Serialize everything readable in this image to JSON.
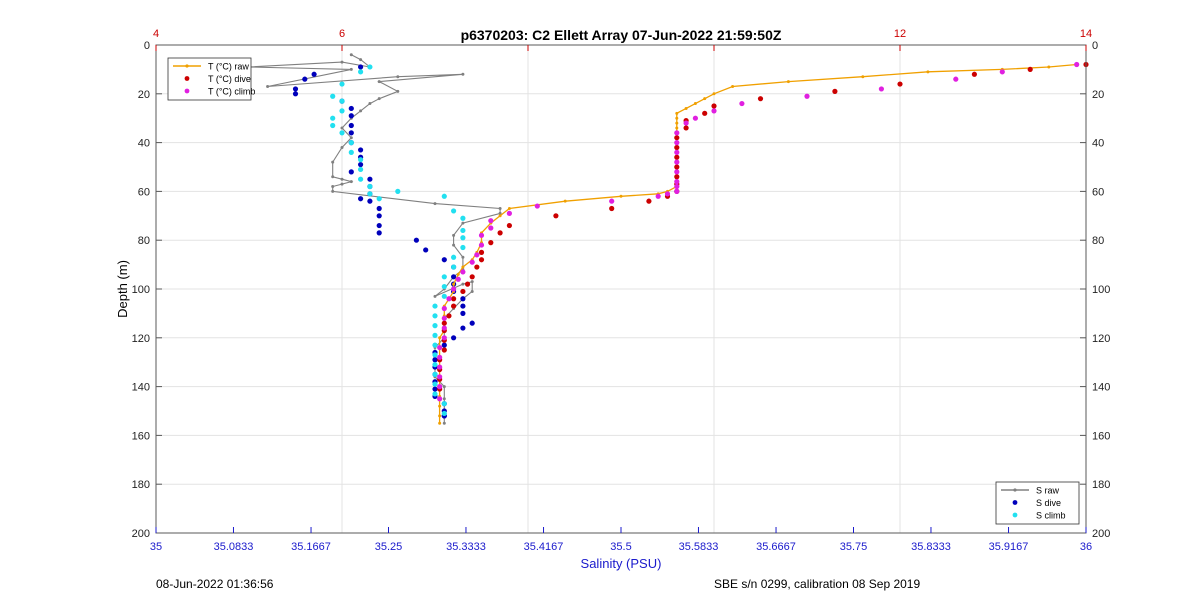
{
  "chart_data": {
    "type": "scatter",
    "title": "p6370203: C2 Ellett Array 07-Jun-2022 21:59:50Z",
    "xlabel": "Salinity (PSU)",
    "ylabel": "Depth (m)",
    "xlim": [
      35,
      36
    ],
    "x_ticks": [
      35,
      35.0833,
      35.1667,
      35.25,
      35.3333,
      35.4167,
      35.5,
      35.5833,
      35.6667,
      35.75,
      35.8333,
      35.9167,
      36
    ],
    "x_tick_labels": [
      "35",
      "35.0833",
      "35.1667",
      "35.25",
      "35.3333",
      "35.4167",
      "35.5",
      "35.5833",
      "35.6667",
      "35.75",
      "35.8333",
      "35.9167",
      "36"
    ],
    "x2lim": [
      4,
      14
    ],
    "x2_ticks": [
      4,
      6,
      8,
      10,
      12,
      14
    ],
    "x2_tick_labels": [
      "4",
      "6",
      "",
      "",
      "12",
      "14"
    ],
    "ylim": [
      0,
      200
    ],
    "y_ticks": [
      0,
      20,
      40,
      60,
      80,
      100,
      120,
      140,
      160,
      180,
      200
    ],
    "y_tick_labels": [
      "0",
      "20",
      "40",
      "60",
      "80",
      "100",
      "120",
      "140",
      "160",
      "180",
      "200"
    ],
    "grid": true,
    "legend_temperature": {
      "placement": "top-left",
      "entries": [
        "T (°C) raw",
        "T (°C) dive",
        "T (°C) climb"
      ]
    },
    "legend_salinity": {
      "placement": "bottom-right",
      "entries": [
        "S raw",
        "S dive",
        "S climb"
      ]
    },
    "colors": {
      "t_raw": "#f0a000",
      "t_dive": "#cc0000",
      "t_climb": "#e020e0",
      "s_raw": "#808080",
      "s_dive": "#0000bb",
      "s_climb": "#22e0f0",
      "top_axis": "#cc0000",
      "bottom_axis": "#1a1acc"
    },
    "series": [
      {
        "name": "S raw",
        "axis": "salinity",
        "style": "line-marker",
        "x": [
          35.21,
          35.22,
          35.23,
          35.2,
          35.1,
          35.21,
          35.12,
          35.26,
          35.33,
          35.24,
          35.26,
          35.24,
          35.23,
          35.22,
          35.21,
          35.2,
          35.21,
          35.2,
          35.19,
          35.19,
          35.2,
          35.21,
          35.2,
          35.19,
          35.19,
          35.3,
          35.37,
          35.37,
          35.33,
          35.32,
          35.32,
          35.33,
          35.33,
          35.32,
          35.31,
          35.3,
          35.33,
          35.34,
          35.34,
          35.33,
          35.32,
          35.31,
          35.31,
          35.31,
          35.3,
          35.3,
          35.3,
          35.3,
          35.31,
          35.31,
          35.31,
          35.31
        ],
        "y": [
          4,
          6,
          9,
          7,
          9,
          10,
          17,
          13,
          12,
          15,
          19,
          22,
          24,
          27,
          30,
          34,
          38,
          42,
          48,
          54,
          55,
          56,
          57,
          58,
          60,
          65,
          67,
          69,
          73,
          78,
          82,
          87,
          92,
          95,
          100,
          103,
          98,
          97,
          101,
          104,
          108,
          112,
          116,
          120,
          124,
          128,
          132,
          136,
          140,
          145,
          150,
          155
        ]
      },
      {
        "name": "S dive",
        "axis": "salinity",
        "style": "marker",
        "x": [
          35.22,
          35.17,
          35.16,
          35.15,
          35.15,
          35.2,
          35.21,
          35.21,
          35.21,
          35.21,
          35.21,
          35.22,
          35.22,
          35.22,
          35.21,
          35.23,
          35.23,
          35.23,
          35.22,
          35.23,
          35.24,
          35.24,
          35.24,
          35.24,
          35.28,
          35.29,
          35.31,
          35.32,
          35.32,
          35.32,
          35.32,
          35.33,
          35.33,
          35.33,
          35.34,
          35.33,
          35.32,
          35.31,
          35.3,
          35.3,
          35.3,
          35.3,
          35.3,
          35.3,
          35.3,
          35.31,
          35.31,
          35.31,
          35.31
        ],
        "y": [
          9,
          12,
          14,
          18,
          20,
          23,
          26,
          29,
          33,
          36,
          40,
          43,
          46,
          49,
          52,
          55,
          58,
          61,
          63,
          64,
          67,
          70,
          74,
          77,
          80,
          84,
          88,
          91,
          95,
          98,
          101,
          104,
          107,
          110,
          114,
          116,
          120,
          123,
          126,
          129,
          132,
          135,
          138,
          141,
          144,
          147,
          150,
          152,
          152
        ]
      },
      {
        "name": "S climb",
        "axis": "salinity",
        "style": "marker",
        "x": [
          35.23,
          35.22,
          35.2,
          35.19,
          35.2,
          35.2,
          35.19,
          35.19,
          35.2,
          35.21,
          35.21,
          35.22,
          35.22,
          35.22,
          35.23,
          35.23,
          35.24,
          35.26,
          35.31,
          35.32,
          35.33,
          35.33,
          35.33,
          35.33,
          35.32,
          35.32,
          35.31,
          35.31,
          35.31,
          35.3,
          35.3,
          35.3,
          35.3,
          35.3,
          35.3,
          35.3,
          35.3,
          35.3,
          35.3,
          35.31,
          35.31
        ],
        "y": [
          9,
          11,
          16,
          21,
          23,
          27,
          30,
          33,
          36,
          40,
          44,
          47,
          51,
          55,
          58,
          61,
          63,
          60,
          62,
          68,
          71,
          76,
          79,
          83,
          87,
          91,
          95,
          99,
          103,
          107,
          111,
          115,
          119,
          123,
          127,
          131,
          135,
          139,
          143,
          147,
          151
        ]
      },
      {
        "name": "T (°C) raw",
        "axis": "temperature",
        "style": "line-marker",
        "x": [
          13.9,
          13.6,
          13.1,
          12.3,
          11.6,
          10.8,
          10.2,
          10.0,
          9.9,
          9.8,
          9.7,
          9.6,
          9.6,
          9.6,
          9.6,
          9.6,
          9.6,
          9.6,
          9.6,
          9.6,
          9.6,
          9.6,
          9.5,
          9.4,
          9.0,
          8.4,
          7.8,
          7.7,
          7.6,
          7.5,
          7.5,
          7.45,
          7.4,
          7.3,
          7.25,
          7.2,
          7.2,
          7.15,
          7.1,
          7.1,
          7.1,
          7.1,
          7.05,
          7.05,
          7.05,
          7.05,
          7.05,
          7.05,
          7.05,
          7.05,
          7.05,
          7.05
        ],
        "y": [
          8,
          9,
          10,
          11,
          13,
          15,
          17,
          20,
          22,
          24,
          26,
          28,
          30,
          32,
          34,
          38,
          42,
          46,
          50,
          54,
          56,
          58,
          60,
          61,
          62,
          64,
          67,
          70,
          73,
          77,
          81,
          85,
          88,
          91,
          94,
          98,
          101,
          104,
          107,
          111,
          114,
          117,
          120,
          124,
          128,
          132,
          136,
          140,
          144,
          148,
          152,
          155
        ]
      },
      {
        "name": "T (°C) dive",
        "axis": "temperature",
        "style": "marker",
        "x": [
          14.0,
          13.4,
          12.8,
          12.0,
          11.3,
          10.5,
          10.0,
          9.9,
          9.7,
          9.7,
          9.6,
          9.6,
          9.6,
          9.6,
          9.6,
          9.6,
          9.6,
          9.5,
          9.3,
          8.9,
          8.3,
          7.8,
          7.7,
          7.6,
          7.5,
          7.5,
          7.45,
          7.4,
          7.35,
          7.3,
          7.2,
          7.2,
          7.15,
          7.1,
          7.1,
          7.1,
          7.1,
          7.05,
          7.05,
          7.05,
          7.05
        ],
        "y": [
          8,
          10,
          12,
          16,
          19,
          22,
          25,
          28,
          31,
          34,
          38,
          42,
          46,
          50,
          54,
          57,
          60,
          62,
          64,
          67,
          70,
          74,
          77,
          81,
          85,
          88,
          91,
          95,
          98,
          101,
          104,
          107,
          111,
          114,
          117,
          121,
          125,
          129,
          133,
          137,
          141
        ]
      },
      {
        "name": "T (°C) climb",
        "axis": "temperature",
        "style": "marker",
        "x": [
          13.9,
          13.1,
          12.6,
          11.8,
          11.0,
          10.3,
          10.0,
          9.8,
          9.7,
          9.6,
          9.6,
          9.6,
          9.6,
          9.6,
          9.6,
          9.6,
          9.6,
          9.5,
          9.4,
          8.9,
          8.1,
          7.8,
          7.6,
          7.6,
          7.5,
          7.5,
          7.45,
          7.4,
          7.3,
          7.25,
          7.2,
          7.15,
          7.1,
          7.1,
          7.1,
          7.1,
          7.05,
          7.05,
          7.05,
          7.05,
          7.05,
          7.05
        ],
        "y": [
          8,
          11,
          14,
          18,
          21,
          24,
          27,
          30,
          32,
          36,
          40,
          44,
          48,
          52,
          56,
          58,
          60,
          61,
          62,
          64,
          66,
          69,
          72,
          75,
          78,
          82,
          86,
          89,
          93,
          96,
          100,
          104,
          108,
          112,
          116,
          120,
          124,
          128,
          132,
          136,
          140,
          145
        ]
      }
    ]
  },
  "footer": {
    "left": "08-Jun-2022 01:36:56",
    "right": "SBE s/n 0299, calibration 08 Sep 2019"
  }
}
